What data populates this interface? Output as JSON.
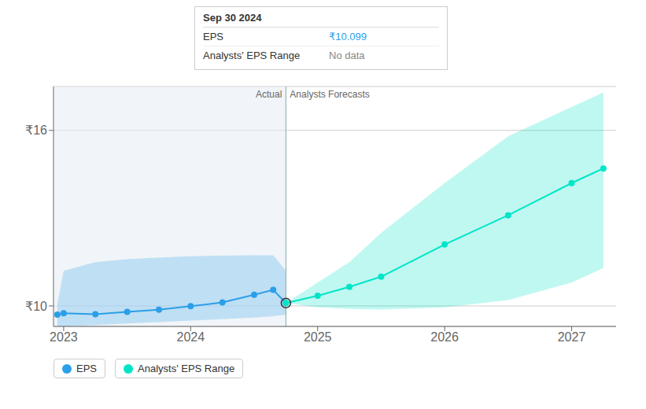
{
  "chart_data": {
    "type": "line",
    "xlim": [
      2022.92,
      2027.35
    ],
    "ylim": [
      9.3,
      17.5
    ],
    "xticks": [
      2023,
      2024,
      2025,
      2026,
      2027
    ],
    "yticks": [
      {
        "value": 10,
        "label": "₹10"
      },
      {
        "value": 16,
        "label": "₹16"
      }
    ],
    "grid": true,
    "legend": "bottom left",
    "series": [
      {
        "name": "EPS",
        "color": "#2b9fe8",
        "x": [
          2022.95,
          2023.0,
          2023.25,
          2023.5,
          2023.75,
          2024.0,
          2024.25,
          2024.5,
          2024.65,
          2024.75
        ],
        "values": [
          9.7,
          9.75,
          9.72,
          9.8,
          9.87,
          9.99,
          10.12,
          10.38,
          10.55,
          10.099
        ],
        "high": [
          10.05,
          11.2,
          11.5,
          11.6,
          11.65,
          11.7,
          11.72,
          11.73,
          11.73,
          11.2
        ],
        "low": [
          9.3,
          9.3,
          9.35,
          9.4,
          9.45,
          9.5,
          9.55,
          9.6,
          9.65,
          9.7
        ]
      },
      {
        "name": "Analysts' EPS Range",
        "color": "#00e5c8",
        "x": [
          2024.75,
          2025.0,
          2025.25,
          2025.5,
          2026.0,
          2026.5,
          2027.0,
          2027.25
        ],
        "values": [
          10.099,
          10.35,
          10.65,
          11.0,
          12.1,
          13.1,
          14.2,
          14.7
        ],
        "high": [
          10.099,
          10.8,
          11.5,
          12.5,
          14.2,
          15.8,
          16.8,
          17.3
        ],
        "low": [
          10.099,
          9.95,
          9.9,
          9.88,
          9.95,
          10.2,
          10.8,
          11.3
        ]
      }
    ],
    "divider": 2024.75,
    "highlight": {
      "x": 2024.75,
      "y": 10.099
    },
    "annotations": [
      "Actual",
      "Analysts Forecasts"
    ],
    "tooltip": {
      "title": "Sep 30 2024",
      "rows": [
        {
          "label": "EPS",
          "value": "₹10.099"
        },
        {
          "label": "Analysts' EPS Range",
          "value": "No data"
        }
      ]
    }
  }
}
